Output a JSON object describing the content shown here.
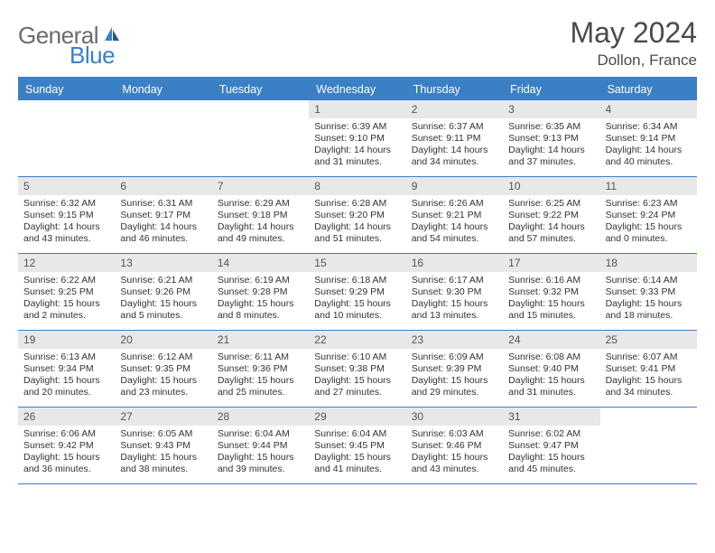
{
  "logo": {
    "word1": "General",
    "word2": "Blue"
  },
  "title": "May 2024",
  "location": "Dollon, France",
  "dayNames": [
    "Sunday",
    "Monday",
    "Tuesday",
    "Wednesday",
    "Thursday",
    "Friday",
    "Saturday"
  ],
  "colors": {
    "accent": "#3b7fc4",
    "header_bg": "#3b7fc4",
    "header_text": "#ffffff",
    "daynum_bg": "#e8e8e8",
    "body_text": "#333333"
  },
  "weeks": [
    [
      {
        "n": "",
        "sr": "",
        "ss": "",
        "dl": ""
      },
      {
        "n": "",
        "sr": "",
        "ss": "",
        "dl": ""
      },
      {
        "n": "",
        "sr": "",
        "ss": "",
        "dl": ""
      },
      {
        "n": "1",
        "sr": "6:39 AM",
        "ss": "9:10 PM",
        "dl": "14 hours and 31 minutes."
      },
      {
        "n": "2",
        "sr": "6:37 AM",
        "ss": "9:11 PM",
        "dl": "14 hours and 34 minutes."
      },
      {
        "n": "3",
        "sr": "6:35 AM",
        "ss": "9:13 PM",
        "dl": "14 hours and 37 minutes."
      },
      {
        "n": "4",
        "sr": "6:34 AM",
        "ss": "9:14 PM",
        "dl": "14 hours and 40 minutes."
      }
    ],
    [
      {
        "n": "5",
        "sr": "6:32 AM",
        "ss": "9:15 PM",
        "dl": "14 hours and 43 minutes."
      },
      {
        "n": "6",
        "sr": "6:31 AM",
        "ss": "9:17 PM",
        "dl": "14 hours and 46 minutes."
      },
      {
        "n": "7",
        "sr": "6:29 AM",
        "ss": "9:18 PM",
        "dl": "14 hours and 49 minutes."
      },
      {
        "n": "8",
        "sr": "6:28 AM",
        "ss": "9:20 PM",
        "dl": "14 hours and 51 minutes."
      },
      {
        "n": "9",
        "sr": "6:26 AM",
        "ss": "9:21 PM",
        "dl": "14 hours and 54 minutes."
      },
      {
        "n": "10",
        "sr": "6:25 AM",
        "ss": "9:22 PM",
        "dl": "14 hours and 57 minutes."
      },
      {
        "n": "11",
        "sr": "6:23 AM",
        "ss": "9:24 PM",
        "dl": "15 hours and 0 minutes."
      }
    ],
    [
      {
        "n": "12",
        "sr": "6:22 AM",
        "ss": "9:25 PM",
        "dl": "15 hours and 2 minutes."
      },
      {
        "n": "13",
        "sr": "6:21 AM",
        "ss": "9:26 PM",
        "dl": "15 hours and 5 minutes."
      },
      {
        "n": "14",
        "sr": "6:19 AM",
        "ss": "9:28 PM",
        "dl": "15 hours and 8 minutes."
      },
      {
        "n": "15",
        "sr": "6:18 AM",
        "ss": "9:29 PM",
        "dl": "15 hours and 10 minutes."
      },
      {
        "n": "16",
        "sr": "6:17 AM",
        "ss": "9:30 PM",
        "dl": "15 hours and 13 minutes."
      },
      {
        "n": "17",
        "sr": "6:16 AM",
        "ss": "9:32 PM",
        "dl": "15 hours and 15 minutes."
      },
      {
        "n": "18",
        "sr": "6:14 AM",
        "ss": "9:33 PM",
        "dl": "15 hours and 18 minutes."
      }
    ],
    [
      {
        "n": "19",
        "sr": "6:13 AM",
        "ss": "9:34 PM",
        "dl": "15 hours and 20 minutes."
      },
      {
        "n": "20",
        "sr": "6:12 AM",
        "ss": "9:35 PM",
        "dl": "15 hours and 23 minutes."
      },
      {
        "n": "21",
        "sr": "6:11 AM",
        "ss": "9:36 PM",
        "dl": "15 hours and 25 minutes."
      },
      {
        "n": "22",
        "sr": "6:10 AM",
        "ss": "9:38 PM",
        "dl": "15 hours and 27 minutes."
      },
      {
        "n": "23",
        "sr": "6:09 AM",
        "ss": "9:39 PM",
        "dl": "15 hours and 29 minutes."
      },
      {
        "n": "24",
        "sr": "6:08 AM",
        "ss": "9:40 PM",
        "dl": "15 hours and 31 minutes."
      },
      {
        "n": "25",
        "sr": "6:07 AM",
        "ss": "9:41 PM",
        "dl": "15 hours and 34 minutes."
      }
    ],
    [
      {
        "n": "26",
        "sr": "6:06 AM",
        "ss": "9:42 PM",
        "dl": "15 hours and 36 minutes."
      },
      {
        "n": "27",
        "sr": "6:05 AM",
        "ss": "9:43 PM",
        "dl": "15 hours and 38 minutes."
      },
      {
        "n": "28",
        "sr": "6:04 AM",
        "ss": "9:44 PM",
        "dl": "15 hours and 39 minutes."
      },
      {
        "n": "29",
        "sr": "6:04 AM",
        "ss": "9:45 PM",
        "dl": "15 hours and 41 minutes."
      },
      {
        "n": "30",
        "sr": "6:03 AM",
        "ss": "9:46 PM",
        "dl": "15 hours and 43 minutes."
      },
      {
        "n": "31",
        "sr": "6:02 AM",
        "ss": "9:47 PM",
        "dl": "15 hours and 45 minutes."
      },
      {
        "n": "",
        "sr": "",
        "ss": "",
        "dl": ""
      }
    ]
  ],
  "labels": {
    "sunrise": "Sunrise:",
    "sunset": "Sunset:",
    "daylight": "Daylight:"
  }
}
